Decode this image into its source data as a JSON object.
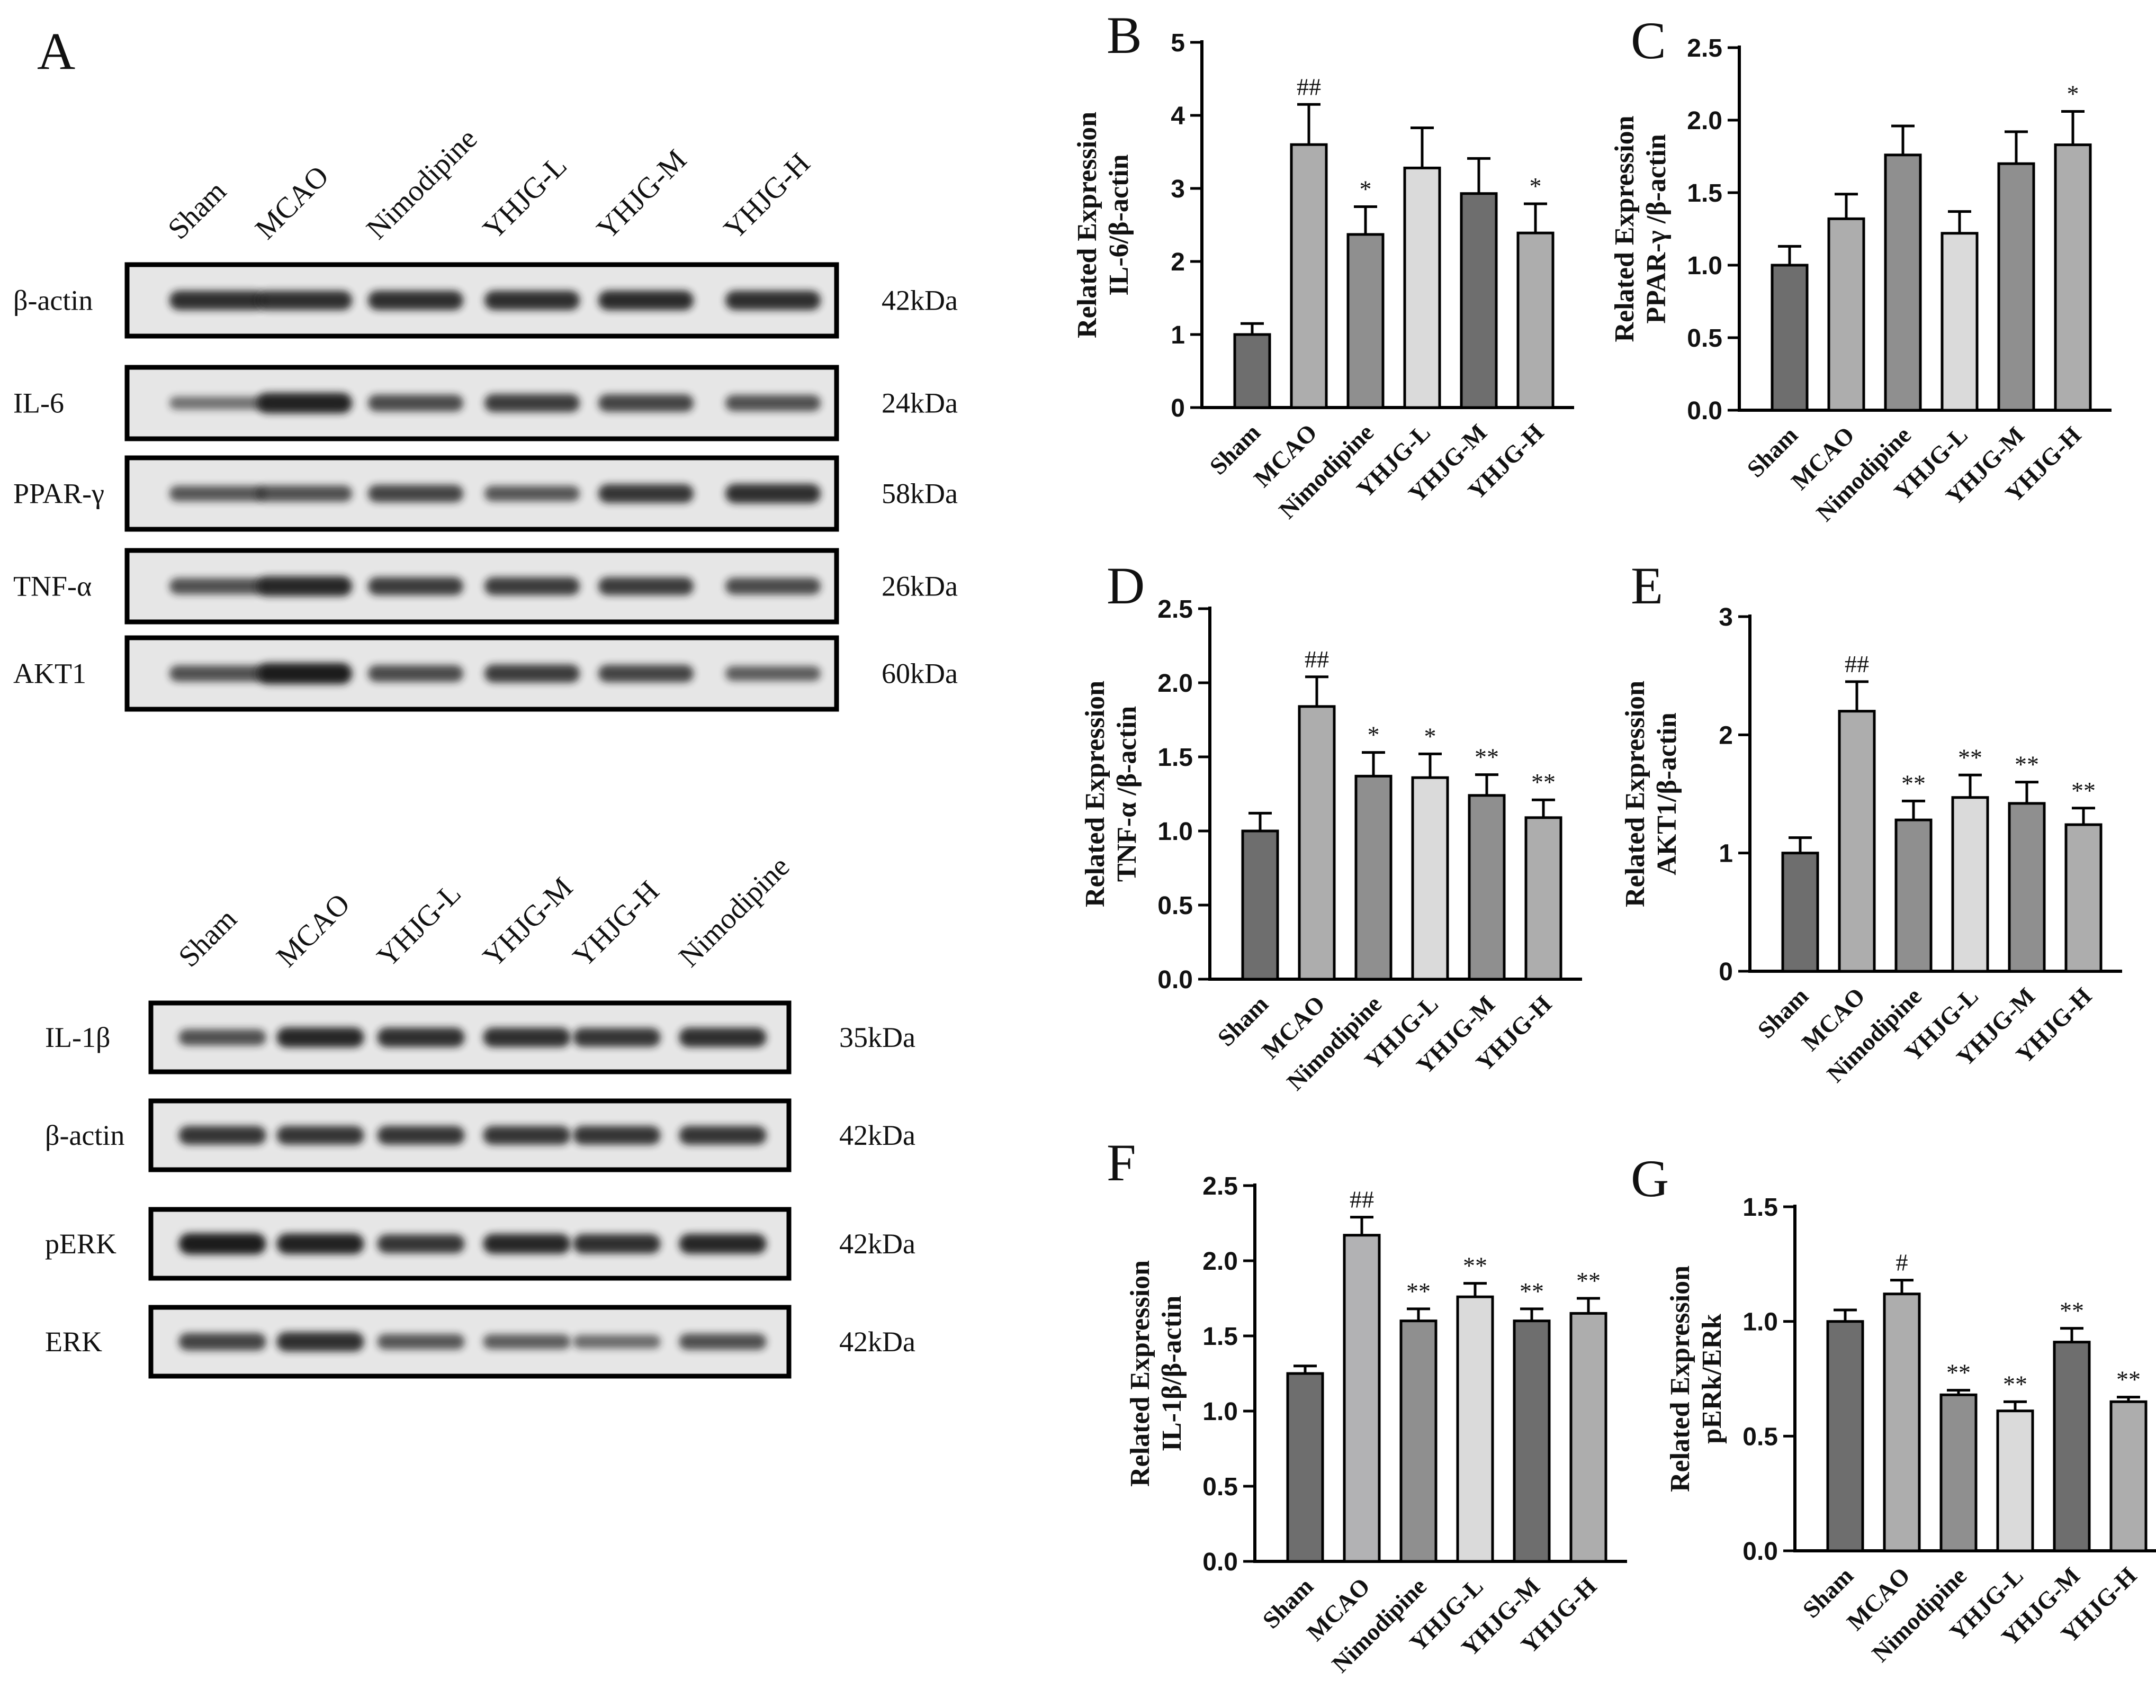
{
  "colors": {
    "bar_dark": "#6e6e6e",
    "bar_mid": "#8f8f8f",
    "bar_light": "#adadad",
    "bar_pale": "#dadada",
    "axis": "#000000",
    "blot_bg": "#e6e6e6",
    "band": "#1a1a1a"
  },
  "blot_top": {
    "panel_label": "A",
    "lanes": [
      "Sham",
      "MCAO",
      "Nimodipine",
      "YHJG-L",
      "YHJG-M",
      "YHJG-H"
    ],
    "rows": [
      {
        "protein": "β-actin",
        "kda": "42kDa",
        "intensity": [
          0.85,
          0.85,
          0.85,
          0.85,
          0.88,
          0.85
        ]
      },
      {
        "protein": "IL-6",
        "kda": "24kDa",
        "intensity": [
          0.35,
          0.95,
          0.65,
          0.75,
          0.7,
          0.6
        ]
      },
      {
        "protein": "PPAR-γ",
        "kda": "58kDa",
        "intensity": [
          0.55,
          0.6,
          0.7,
          0.55,
          0.8,
          0.85
        ]
      },
      {
        "protein": "TNF-α",
        "kda": "26kDa",
        "intensity": [
          0.6,
          0.9,
          0.75,
          0.75,
          0.75,
          0.65
        ]
      },
      {
        "protein": "AKT1",
        "kda": "60kDa",
        "intensity": [
          0.6,
          1.0,
          0.65,
          0.75,
          0.7,
          0.5
        ]
      }
    ]
  },
  "blot_bottom": {
    "lanes": [
      "Sham",
      "MCAO",
      "YHJG-L",
      "YHJG-M",
      "YHJG-H",
      "Nimodipine"
    ],
    "rows": [
      {
        "protein": "IL-1β",
        "kda": "35kDa",
        "intensity": [
          0.6,
          0.9,
          0.85,
          0.85,
          0.8,
          0.85
        ]
      },
      {
        "protein": "β-actin",
        "kda": "42kDa",
        "intensity": [
          0.8,
          0.8,
          0.8,
          0.8,
          0.8,
          0.8
        ]
      },
      {
        "protein": "pERK",
        "kda": "42kDa",
        "intensity": [
          1.0,
          0.95,
          0.8,
          0.9,
          0.85,
          0.9
        ]
      },
      {
        "protein": "ERK",
        "kda": "42kDa",
        "intensity": [
          0.7,
          0.85,
          0.55,
          0.5,
          0.4,
          0.6
        ]
      }
    ]
  },
  "chart_data": [
    {
      "panel": "B",
      "type": "bar",
      "ylabel_line1": "Related Expression",
      "ylabel_line2": "IL-6/β-actin",
      "categories": [
        "Sham",
        "MCAO",
        "Nimodipine",
        "YHJG-L",
        "YHJG-M",
        "YHJG-H"
      ],
      "values": [
        1.0,
        3.6,
        2.37,
        3.28,
        2.93,
        2.39
      ],
      "errors": [
        0.15,
        0.55,
        0.38,
        0.55,
        0.48,
        0.4
      ],
      "annotations": [
        "",
        "##",
        "*",
        "",
        "",
        "*"
      ],
      "colors": [
        "#6e6e6e",
        "#adadad",
        "#8f8f8f",
        "#dadada",
        "#6e6e6e",
        "#adadad"
      ],
      "ylim": [
        0,
        5
      ],
      "yticks": [
        "0",
        "1",
        "2",
        "3",
        "4",
        "5"
      ]
    },
    {
      "panel": "C",
      "type": "bar",
      "ylabel_line1": "Related Expression",
      "ylabel_line2": "PPAR-γ /β-actin",
      "categories": [
        "Sham",
        "MCAO",
        "Nimodipine",
        "YHJG-L",
        "YHJG-M",
        "YHJG-H"
      ],
      "values": [
        1.0,
        1.32,
        1.76,
        1.22,
        1.7,
        1.83
      ],
      "errors": [
        0.13,
        0.17,
        0.2,
        0.15,
        0.22,
        0.23
      ],
      "annotations": [
        "",
        "",
        "",
        "",
        "",
        "*"
      ],
      "colors": [
        "#6e6e6e",
        "#adadad",
        "#8f8f8f",
        "#dadada",
        "#8f8f8f",
        "#adadad"
      ],
      "ylim": [
        0,
        2.5
      ],
      "yticks": [
        "0.0",
        "0.5",
        "1.0",
        "1.5",
        "2.0",
        "2.5"
      ]
    },
    {
      "panel": "D",
      "type": "bar",
      "ylabel_line1": "Related Expression",
      "ylabel_line2": "TNF-α /β-actin",
      "categories": [
        "Sham",
        "MCAO",
        "Nimodipine",
        "YHJG-L",
        "YHJG-M",
        "YHJG-H"
      ],
      "values": [
        1.0,
        1.84,
        1.37,
        1.36,
        1.24,
        1.09
      ],
      "errors": [
        0.12,
        0.2,
        0.16,
        0.16,
        0.14,
        0.12
      ],
      "annotations": [
        "",
        "##",
        "*",
        "*",
        "**",
        "**"
      ],
      "colors": [
        "#6e6e6e",
        "#adadad",
        "#8f8f8f",
        "#dadada",
        "#8f8f8f",
        "#adadad"
      ],
      "ylim": [
        0,
        2.5
      ],
      "yticks": [
        "0.0",
        "0.5",
        "1.0",
        "1.5",
        "2.0",
        "2.5"
      ]
    },
    {
      "panel": "E",
      "type": "bar",
      "ylabel_line1": "Related Expression",
      "ylabel_line2": "AKT1/β-actin",
      "categories": [
        "Sham",
        "MCAO",
        "Nimodipine",
        "YHJG-L",
        "YHJG-M",
        "YHJG-H"
      ],
      "values": [
        1.0,
        2.2,
        1.28,
        1.47,
        1.42,
        1.24
      ],
      "errors": [
        0.13,
        0.25,
        0.16,
        0.19,
        0.18,
        0.14
      ],
      "annotations": [
        "",
        "##",
        "**",
        "**",
        "**",
        "**"
      ],
      "colors": [
        "#6e6e6e",
        "#adadad",
        "#8f8f8f",
        "#dadada",
        "#8f8f8f",
        "#adadad"
      ],
      "ylim": [
        0,
        3
      ],
      "yticks": [
        "0",
        "1",
        "2",
        "3"
      ]
    },
    {
      "panel": "F",
      "type": "bar",
      "ylabel_line1": "Related Expression",
      "ylabel_line2": "IL-1β/β-actin",
      "categories": [
        "Sham",
        "MCAO",
        "Nimodipine",
        "YHJG-L",
        "YHJG-M",
        "YHJG-H"
      ],
      "values": [
        1.25,
        2.17,
        1.6,
        1.76,
        1.6,
        1.65
      ],
      "errors": [
        0.05,
        0.12,
        0.08,
        0.09,
        0.08,
        0.1
      ],
      "annotations": [
        "",
        "##",
        "**",
        "**",
        "**",
        "**"
      ],
      "colors": [
        "#6e6e6e",
        "#b2b2b4",
        "#8f8f8f",
        "#dadada",
        "#6e6e6e",
        "#adadad"
      ],
      "ylim": [
        0,
        2.5
      ],
      "yticks": [
        "0.0",
        "0.5",
        "1.0",
        "1.5",
        "2.0",
        "2.5"
      ]
    },
    {
      "panel": "G",
      "type": "bar",
      "ylabel_line1": "Related Expression",
      "ylabel_line2": "pERk/ERk",
      "categories": [
        "Sham",
        "MCAO",
        "Nimodipine",
        "YHJG-L",
        "YHJG-M",
        "YHJG-H"
      ],
      "values": [
        1.0,
        1.12,
        0.68,
        0.61,
        0.91,
        0.65
      ],
      "errors": [
        0.05,
        0.06,
        0.02,
        0.04,
        0.06,
        0.02
      ],
      "annotations": [
        "",
        "#",
        "**",
        "**",
        "**",
        "**"
      ],
      "colors": [
        "#6e6e6e",
        "#adadad",
        "#8f8f8f",
        "#dadada",
        "#6e6e6e",
        "#adadad"
      ],
      "ylim": [
        0,
        1.5
      ],
      "yticks": [
        "0.0",
        "0.5",
        "1.0",
        "1.5"
      ]
    }
  ]
}
